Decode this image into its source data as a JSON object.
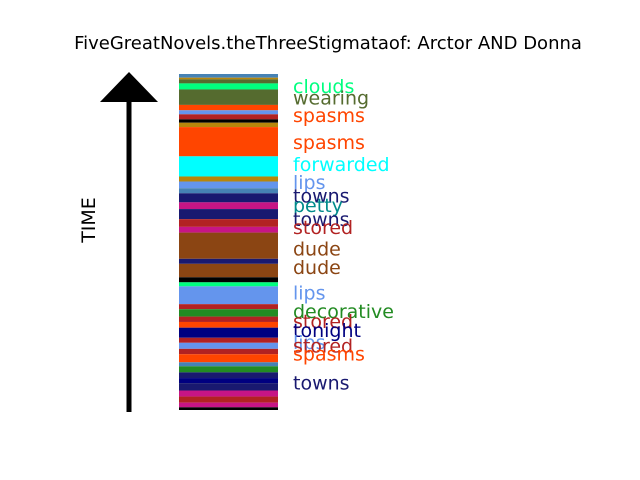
{
  "chart_data": {
    "type": "timeline-barcode",
    "title": "FiveGreatNovels.theThreeStigmataof: Arctor AND Donna",
    "ylabel": "TIME",
    "arrow_direction": "up",
    "colors": {
      "clouds": "#00ff7f",
      "wearing": "#556b2f",
      "spasms": "#ff4500",
      "forwarded": "#00ffff",
      "lips": "#6495ed",
      "towns": "#191970",
      "petty": "#008b8b",
      "stored": "#b22222",
      "dude": "#8b4513",
      "decorative": "#228b22",
      "tonight": "#000080",
      "other_a": "#4682b4",
      "other_b": "#c71585",
      "other_c": "#b8860b",
      "other_d": "#000000"
    },
    "stripes": [
      [
        0.0,
        "other_a"
      ],
      [
        0.011,
        "other_c"
      ],
      [
        0.016,
        "wearing"
      ],
      [
        0.028,
        "clouds"
      ],
      [
        0.046,
        "wearing"
      ],
      [
        0.092,
        "spasms"
      ],
      [
        0.108,
        "lips"
      ],
      [
        0.12,
        "stored"
      ],
      [
        0.135,
        "other_d"
      ],
      [
        0.145,
        "other_c"
      ],
      [
        0.158,
        "spasms"
      ],
      [
        0.245,
        "forwarded"
      ],
      [
        0.305,
        "other_c"
      ],
      [
        0.32,
        "lips"
      ],
      [
        0.34,
        "other_a"
      ],
      [
        0.355,
        "towns"
      ],
      [
        0.382,
        "other_b"
      ],
      [
        0.402,
        "towns"
      ],
      [
        0.432,
        "stored"
      ],
      [
        0.455,
        "other_b"
      ],
      [
        0.472,
        "dude"
      ],
      [
        0.55,
        "towns"
      ],
      [
        0.565,
        "dude"
      ],
      [
        0.605,
        "other_d"
      ],
      [
        0.62,
        "clouds"
      ],
      [
        0.632,
        "lips"
      ],
      [
        0.685,
        "stored"
      ],
      [
        0.7,
        "decorative"
      ],
      [
        0.722,
        "stored"
      ],
      [
        0.738,
        "spasms"
      ],
      [
        0.755,
        "tonight"
      ],
      [
        0.785,
        "stored"
      ],
      [
        0.8,
        "lips"
      ],
      [
        0.818,
        "stored"
      ],
      [
        0.834,
        "spasms"
      ],
      [
        0.858,
        "other_a"
      ],
      [
        0.87,
        "decorative"
      ],
      [
        0.888,
        "towns"
      ],
      [
        0.905,
        "tonight"
      ],
      [
        0.92,
        "towns"
      ],
      [
        0.942,
        "other_b"
      ],
      [
        0.96,
        "stored"
      ],
      [
        0.978,
        "other_b"
      ],
      [
        0.992,
        "other_d"
      ]
    ],
    "labels": [
      {
        "word": "clouds",
        "t": 0.036
      },
      {
        "word": "wearing",
        "t": 0.07
      },
      {
        "word": "spasms",
        "t": 0.122
      },
      {
        "word": "spasms",
        "t": 0.202
      },
      {
        "word": "forwarded",
        "t": 0.268
      },
      {
        "word": "lips",
        "t": 0.322
      },
      {
        "word": "towns",
        "t": 0.362
      },
      {
        "word": "petty",
        "t": 0.39
      },
      {
        "word": "towns",
        "t": 0.432
      },
      {
        "word": "stored",
        "t": 0.455
      },
      {
        "word": "dude",
        "t": 0.52
      },
      {
        "word": "dude",
        "t": 0.575
      },
      {
        "word": "lips",
        "t": 0.65
      },
      {
        "word": "decorative",
        "t": 0.705
      },
      {
        "word": "stored",
        "t": 0.735
      },
      {
        "word": "tonight",
        "t": 0.762
      },
      {
        "word": "lips",
        "t": 0.798
      },
      {
        "word": "stored",
        "t": 0.808
      },
      {
        "word": "spasms",
        "t": 0.832
      },
      {
        "word": "towns",
        "t": 0.918
      }
    ]
  }
}
